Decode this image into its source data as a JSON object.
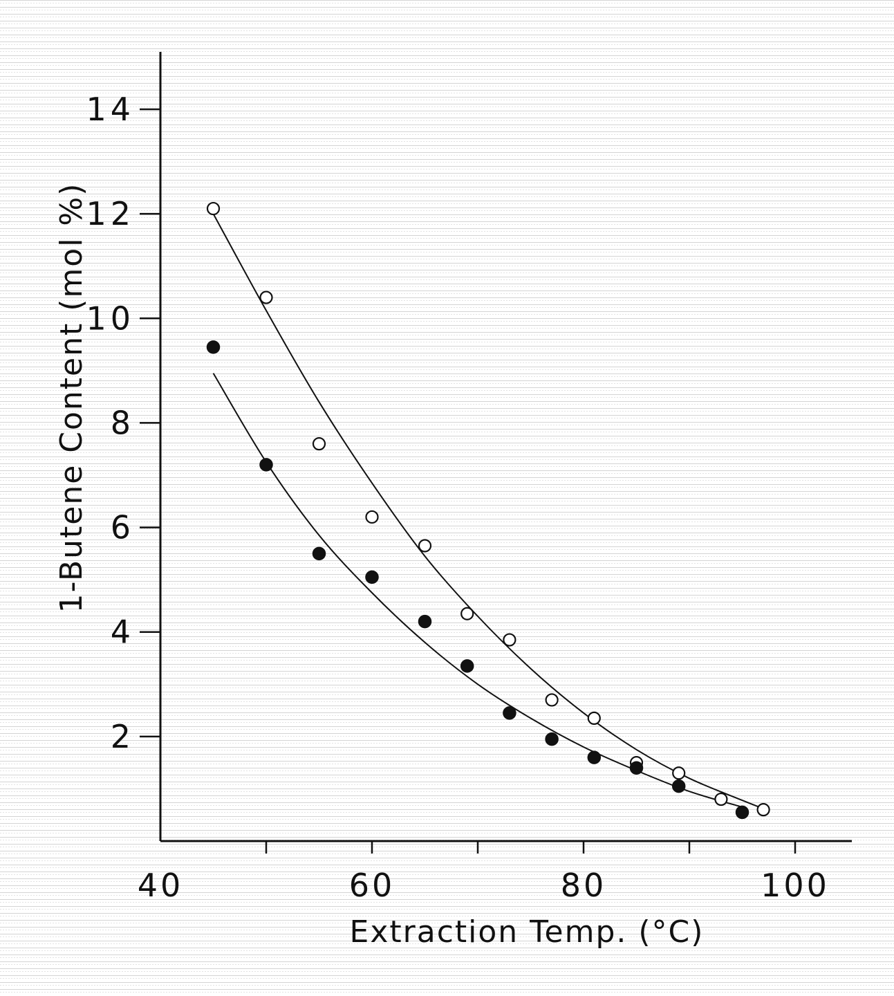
{
  "chart_data": {
    "type": "scatter",
    "title": "",
    "xlabel": "Extraction  Temp. (°C)",
    "ylabel": "1-Butene  Content (mol %)",
    "xlim": [
      40,
      108
    ],
    "ylim": [
      0,
      15
    ],
    "x_ticks": [
      40,
      60,
      80,
      100
    ],
    "x_tick_labels": [
      "40",
      "60",
      "80",
      "100"
    ],
    "x_minor_ticks": [
      50,
      70,
      90
    ],
    "y_ticks": [
      2,
      4,
      6,
      8,
      10,
      12,
      14
    ],
    "y_tick_labels": [
      "2",
      "4",
      "6",
      "8",
      "10",
      "12",
      "14"
    ],
    "grid": false,
    "legend": "none",
    "series": [
      {
        "marker": "open-circle",
        "x": [
          45,
          50,
          55,
          60,
          65,
          69,
          73,
          77,
          81,
          85,
          89,
          93,
          97
        ],
        "y": [
          12.1,
          10.4,
          7.6,
          6.2,
          5.65,
          4.35,
          3.85,
          2.7,
          2.35,
          1.5,
          1.3,
          0.8,
          0.6
        ],
        "fit_curve": {
          "x": [
            45,
            50,
            55,
            60,
            65,
            70,
            75,
            80,
            85,
            90,
            95,
            97
          ],
          "y": [
            12.0,
            10.15,
            8.4,
            6.85,
            5.45,
            4.3,
            3.3,
            2.45,
            1.75,
            1.2,
            0.78,
            0.62
          ]
        }
      },
      {
        "marker": "filled-circle",
        "x": [
          45,
          50,
          55,
          60,
          65,
          69,
          73,
          77,
          81,
          85,
          89,
          95
        ],
        "y": [
          9.45,
          7.2,
          5.5,
          5.05,
          4.2,
          3.35,
          2.45,
          1.95,
          1.6,
          1.4,
          1.05,
          0.55
        ],
        "fit_curve": {
          "x": [
            45,
            50,
            55,
            60,
            65,
            70,
            75,
            80,
            85,
            90,
            95
          ],
          "y": [
            8.95,
            7.25,
            5.85,
            4.75,
            3.8,
            3.0,
            2.35,
            1.8,
            1.35,
            0.95,
            0.65
          ]
        }
      }
    ]
  },
  "colors": {
    "background": "#ffffff",
    "hatch": "#cfcfcf",
    "ink": "#111111"
  }
}
